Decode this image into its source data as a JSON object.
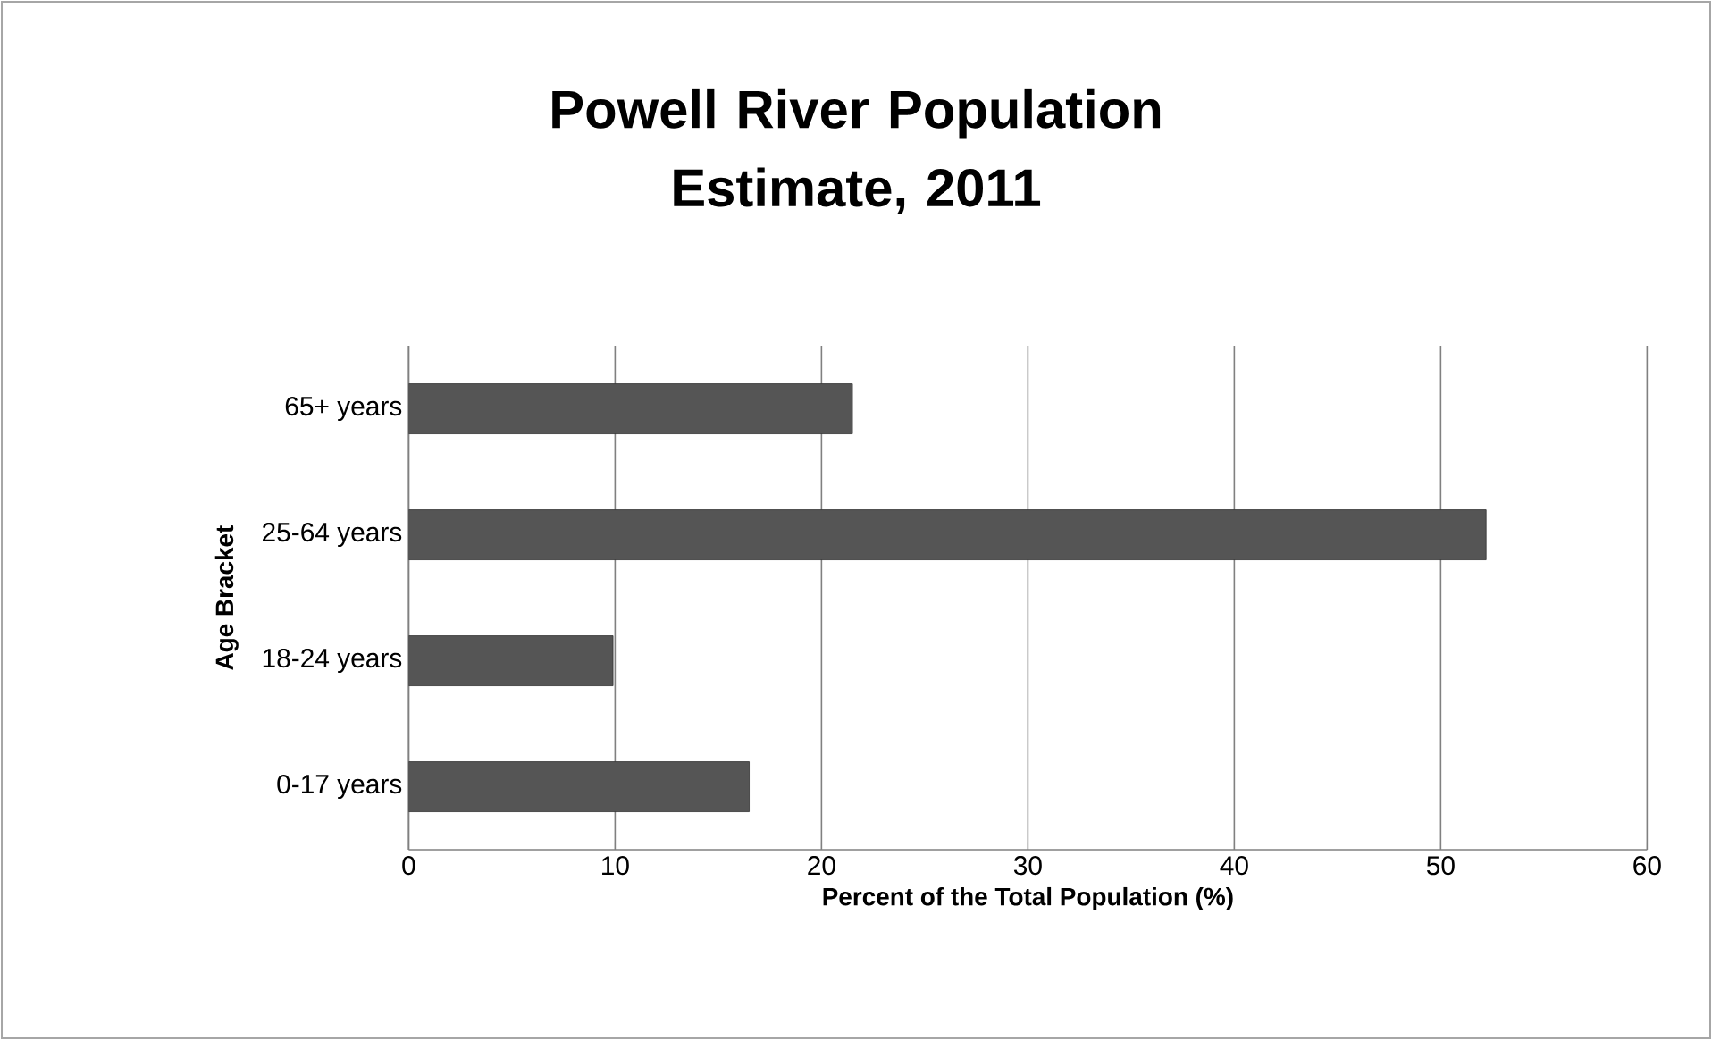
{
  "chart_data": {
    "type": "bar",
    "orientation": "horizontal",
    "title": "Powell River Population Estimate, 2011",
    "xlabel": "Percent of the Total Population (%)",
    "ylabel": "Age Bracket",
    "categories": [
      "65+ years",
      "25-64 years",
      "18-24 years",
      "0-17 years"
    ],
    "values": [
      21.5,
      52.2,
      9.9,
      16.5
    ],
    "color": "#555555",
    "xlim": [
      0,
      60
    ],
    "xticks": [
      0,
      10,
      20,
      30,
      40,
      50,
      60
    ],
    "grid": "x"
  }
}
